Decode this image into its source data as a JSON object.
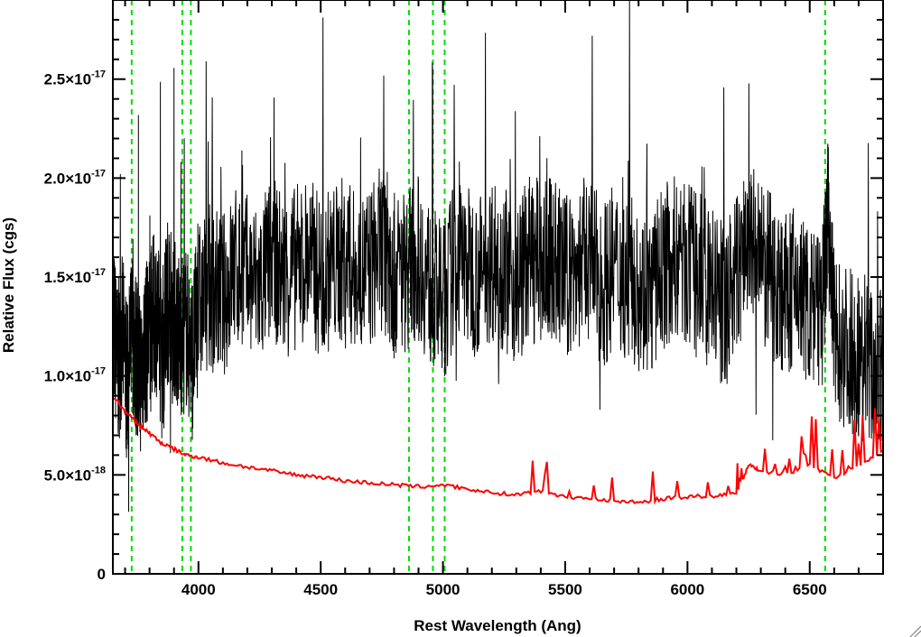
{
  "chart_data": {
    "type": "line",
    "title": "",
    "xlabel": "Rest Wavelength (Ang)",
    "ylabel": "Relative Flux (cgs)",
    "xlim": [
      3650,
      6800
    ],
    "ylim": [
      0,
      2.9e-17
    ],
    "x_ticks": [
      4000,
      4500,
      5000,
      5500,
      6000,
      6500
    ],
    "x_tick_labels": [
      "4000",
      "4500",
      "5000",
      "5500",
      "6000",
      "6500"
    ],
    "y_ticks": [
      {
        "value": 0,
        "mantissa": "0",
        "exponent": ""
      },
      {
        "value": 5e-18,
        "mantissa": "5.0×10",
        "exponent": "-18"
      },
      {
        "value": 1e-17,
        "mantissa": "1.0×10",
        "exponent": "-17"
      },
      {
        "value": 1.5e-17,
        "mantissa": "1.5×10",
        "exponent": "-17"
      },
      {
        "value": 2e-17,
        "mantissa": "2.0×10",
        "exponent": "-17"
      },
      {
        "value": 2.5e-17,
        "mantissa": "2.5×10",
        "exponent": "-17"
      }
    ],
    "grid": false,
    "series": [
      {
        "color": "#000000",
        "description": "observed spectrum (noisy)",
        "x": [
          3650,
          3670,
          3690,
          3710,
          3730,
          3745,
          3760,
          3780,
          3800,
          3825,
          3850,
          3875,
          3900,
          3925,
          3950,
          3975,
          4000,
          4050,
          4100,
          4150,
          4200,
          4250,
          4300,
          4350,
          4400,
          4450,
          4500,
          4550,
          4600,
          4650,
          4700,
          4750,
          4780,
          4800,
          4850,
          4900,
          4950,
          5000,
          5050,
          5100,
          5150,
          5200,
          5250,
          5300,
          5350,
          5400,
          5450,
          5500,
          5550,
          5600,
          5650,
          5700,
          5750,
          5800,
          5850,
          5900,
          5950,
          6000,
          6050,
          6100,
          6150,
          6200,
          6250,
          6300,
          6350,
          6400,
          6450,
          6500,
          6550,
          6575,
          6600,
          6650,
          6700,
          6750,
          6800
        ],
        "y": [
          1.3e-17,
          1.05e-17,
          1.2e-17,
          9.5e-18,
          1.25e-17,
          1.1e-17,
          1e-17,
          1.15e-17,
          1.2e-17,
          1.35e-17,
          1.1e-17,
          1.4e-17,
          1.3e-17,
          1.2e-17,
          1.25e-17,
          1.1e-17,
          1.35e-17,
          1.45e-17,
          1.4e-17,
          1.55e-17,
          1.5e-17,
          1.45e-17,
          1.6e-17,
          1.5e-17,
          1.55e-17,
          1.6e-17,
          1.5e-17,
          1.55e-17,
          1.6e-17,
          1.5e-17,
          1.55e-17,
          1.65e-17,
          1.6e-17,
          1.5e-17,
          1.55e-17,
          1.6e-17,
          1.45e-17,
          1.35e-17,
          1.6e-17,
          1.55e-17,
          1.5e-17,
          1.6e-17,
          1.55e-17,
          1.45e-17,
          1.6e-17,
          1.55e-17,
          1.6e-17,
          1.5e-17,
          1.55e-17,
          1.6e-17,
          1.45e-17,
          1.55e-17,
          1.5e-17,
          1.45e-17,
          1.4e-17,
          1.55e-17,
          1.6e-17,
          1.55e-17,
          1.5e-17,
          1.45e-17,
          1.35e-17,
          1.5e-17,
          1.7e-17,
          1.55e-17,
          1.5e-17,
          1.4e-17,
          1.45e-17,
          1.35e-17,
          1.3e-17,
          1.8e-17,
          1.2e-17,
          1.15e-17,
          1.1e-17,
          1.05e-17,
          1e-17
        ]
      },
      {
        "color": "#ff0000",
        "description": "model / continuum",
        "x": [
          3650,
          3700,
          3750,
          3800,
          3850,
          3900,
          3950,
          4000,
          4100,
          4200,
          4300,
          4400,
          4500,
          4600,
          4700,
          4800,
          4900,
          5000,
          5100,
          5200,
          5300,
          5400,
          5500,
          5600,
          5700,
          5800,
          5900,
          6000,
          6100,
          6200,
          6250,
          6300,
          6400,
          6500,
          6600,
          6700,
          6800
        ],
        "y": [
          9e-18,
          8.2e-18,
          7.6e-18,
          7.1e-18,
          6.6e-18,
          6.3e-18,
          6e-18,
          5.9e-18,
          5.6e-18,
          5.4e-18,
          5.2e-18,
          5e-18,
          4.9e-18,
          4.7e-18,
          4.6e-18,
          4.5e-18,
          4.4e-18,
          4.5e-18,
          4.3e-18,
          4.1e-18,
          4e-18,
          4.2e-18,
          3.9e-18,
          3.8e-18,
          3.7e-18,
          3.6e-18,
          3.8e-18,
          3.9e-18,
          3.9e-18,
          4.1e-18,
          5.5e-18,
          5.2e-18,
          5e-18,
          5.5e-18,
          4.8e-18,
          5.5e-18,
          6.2e-18
        ]
      }
    ],
    "vertical_lines": {
      "color": "#00dd00",
      "style": "dashed",
      "x": [
        3727,
        3934,
        3969,
        4861,
        4959,
        5007,
        6563
      ]
    }
  }
}
